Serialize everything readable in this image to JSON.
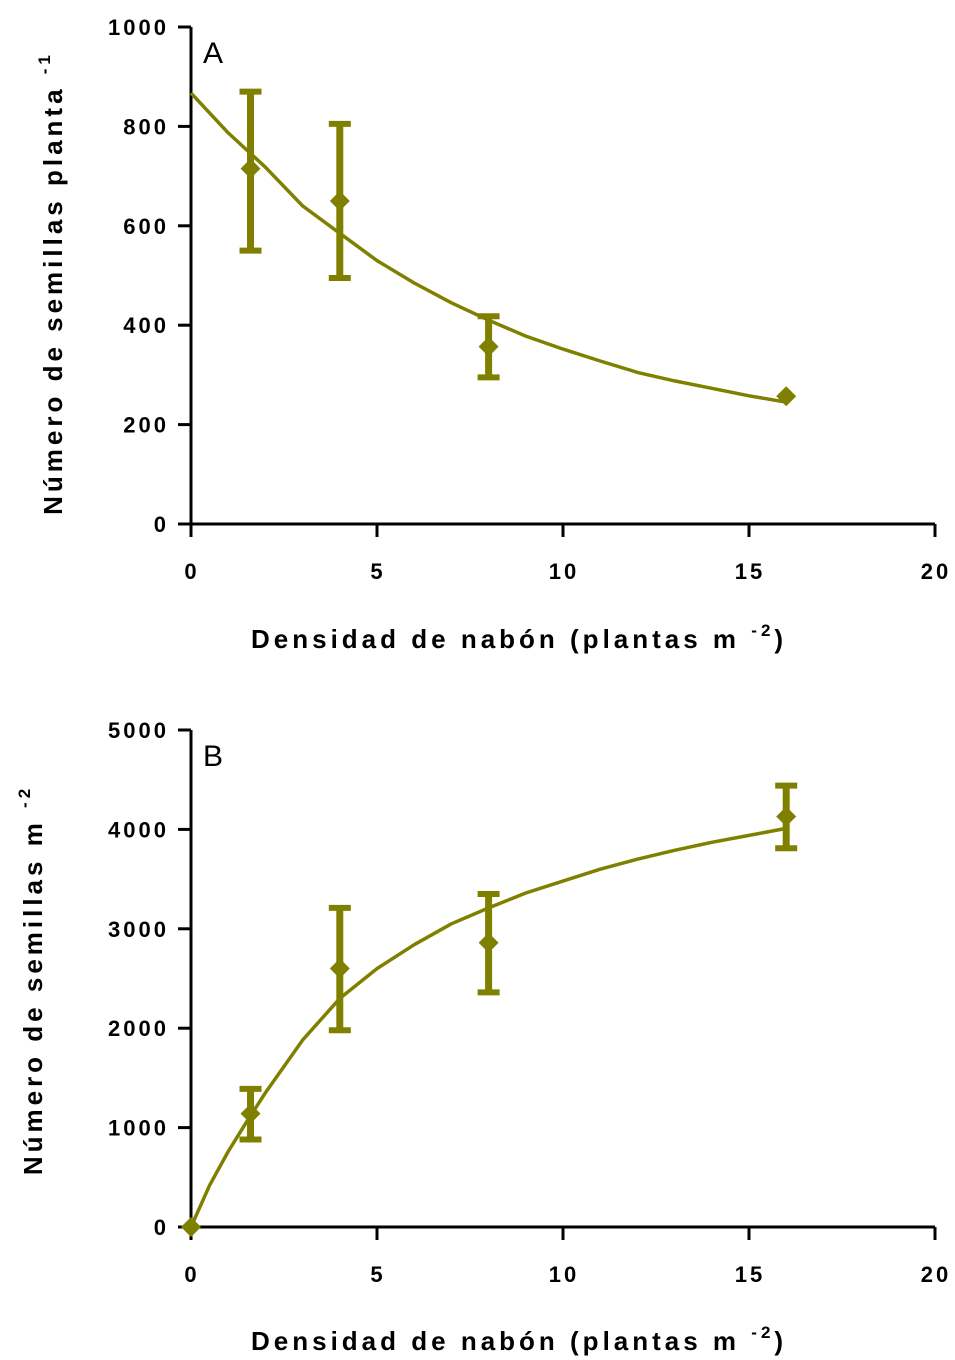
{
  "colors": {
    "series": "#808000",
    "axis": "#000000"
  },
  "chart_data": [
    {
      "type": "scatter",
      "panel_label": "A",
      "xlabel": "Densidad de nabón (plantas m",
      "xlabel_sup": "-2",
      "xlabel_close": ")",
      "ylabel": "Número de semillas planta",
      "ylabel_sup": "-1",
      "xlim": [
        0,
        20
      ],
      "ylim": [
        0,
        1000
      ],
      "xticks": [
        0,
        5,
        10,
        15,
        20
      ],
      "yticks": [
        0,
        200,
        400,
        600,
        800,
        1000
      ],
      "grid": false,
      "legend": "none",
      "marker": "diamond",
      "points": [
        {
          "x": 1.6,
          "y": 715,
          "err_low": 550,
          "err_high": 870
        },
        {
          "x": 4,
          "y": 650,
          "err_low": 495,
          "err_high": 805
        },
        {
          "x": 8,
          "y": 357,
          "err_low": 295,
          "err_high": 418
        },
        {
          "x": 16,
          "y": 257,
          "err_low": 257,
          "err_high": 257
        }
      ],
      "fit_curve": {
        "x": [
          0,
          1,
          2,
          3,
          4,
          5,
          6,
          7,
          8,
          9,
          10,
          11,
          12,
          13,
          14,
          15,
          16
        ],
        "y": [
          867,
          787,
          718,
          640,
          585,
          530,
          485,
          445,
          410,
          378,
          352,
          328,
          305,
          288,
          273,
          258,
          245
        ]
      }
    },
    {
      "type": "scatter",
      "panel_label": "B",
      "xlabel": "Densidad de nabón (plantas m",
      "xlabel_sup": "-2",
      "xlabel_close": ")",
      "ylabel": "Número de semillas m",
      "ylabel_sup": "-2",
      "xlim": [
        0,
        20
      ],
      "ylim": [
        0,
        5000
      ],
      "xticks": [
        0,
        5,
        10,
        15,
        20
      ],
      "yticks": [
        0,
        1000,
        2000,
        3000,
        4000,
        5000
      ],
      "grid": false,
      "legend": "none",
      "marker": "diamond",
      "points": [
        {
          "x": 0,
          "y": 0,
          "err_low": 0,
          "err_high": 0
        },
        {
          "x": 1.6,
          "y": 1140,
          "err_low": 880,
          "err_high": 1390
        },
        {
          "x": 4,
          "y": 2600,
          "err_low": 1980,
          "err_high": 3210
        },
        {
          "x": 8,
          "y": 2860,
          "err_low": 2360,
          "err_high": 3350
        },
        {
          "x": 16,
          "y": 4130,
          "err_low": 3810,
          "err_high": 4440
        }
      ],
      "fit_curve": {
        "x": [
          0,
          0.5,
          1,
          1.5,
          2,
          3,
          4,
          5,
          6,
          7,
          8,
          9,
          10,
          11,
          12,
          13,
          14,
          15,
          16
        ],
        "y": [
          0,
          420,
          760,
          1060,
          1350,
          1880,
          2300,
          2600,
          2840,
          3050,
          3210,
          3360,
          3480,
          3600,
          3700,
          3790,
          3870,
          3940,
          4010
        ]
      }
    }
  ]
}
